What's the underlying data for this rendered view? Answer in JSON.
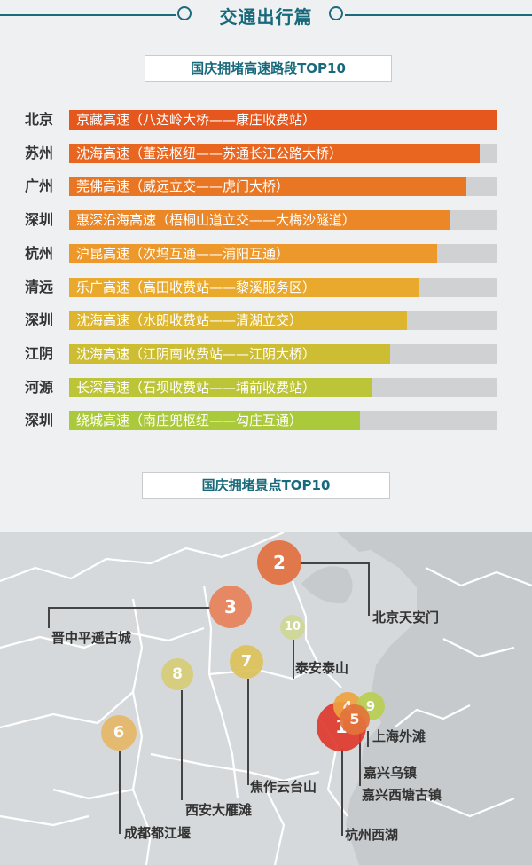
{
  "header": {
    "title": "交通出行篇"
  },
  "highway_section": {
    "title": "国庆拥堵高速路段TOP10"
  },
  "scenic_section": {
    "title": "国庆拥堵景点TOP10"
  },
  "chart_data": [
    {
      "type": "bar",
      "title": "国庆拥堵高速路段TOP10",
      "categories": [
        "北京 京藏高速（八达岭大桥——康庄收费站）",
        "苏州 沈海高速（董滨枢纽——苏通长江公路大桥）",
        "广州 莞佛高速（威远立交——虎门大桥）",
        "深圳 惠深沿海高速（梧桐山道立交——大梅沙隧道）",
        "杭州 沪昆高速（次坞互通——浦阳互通）",
        "清远 乐广高速（高田收费站——黎溪服务区）",
        "深圳 沈海高速（水朗收费站——清湖立交）",
        "江阴 沈海高速（江阴南收费站——江阴大桥）",
        "河源 长深高速（石坝收费站——埔前收费站）",
        "深圳 绕城高速（南庄兜枢纽——勾庄互通）"
      ],
      "rows": [
        {
          "city": "北京",
          "road": "京藏高速（八达岭大桥——康庄收费站）",
          "value": 100,
          "color": "#e5571c"
        },
        {
          "city": "苏州",
          "road": "沈海高速（董滨枢纽——苏通长江公路大桥）",
          "value": 96,
          "color": "#e8661f"
        },
        {
          "city": "广州",
          "road": "莞佛高速（威远立交——虎门大桥）",
          "value": 93,
          "color": "#e97622"
        },
        {
          "city": "深圳",
          "road": "惠深沿海高速（梧桐山道立交——大梅沙隧道）",
          "value": 89,
          "color": "#eb8726"
        },
        {
          "city": "杭州",
          "road": "沪昆高速（次坞互通——浦阳互通）",
          "value": 86,
          "color": "#ec982a"
        },
        {
          "city": "清远",
          "road": "乐广高速（高田收费站——黎溪服务区）",
          "value": 82,
          "color": "#e8a92c"
        },
        {
          "city": "深圳",
          "road": "沈海高速（水朗收费站——清湖立交）",
          "value": 79,
          "color": "#ddb52f"
        },
        {
          "city": "江阴",
          "road": "沈海高速（江阴南收费站——江阴大桥）",
          "value": 75,
          "color": "#cdbd33"
        },
        {
          "city": "河源",
          "road": "长深高速（石坝收费站——埔前收费站）",
          "value": 71,
          "color": "#bcc437"
        },
        {
          "city": "深圳",
          "road": "绕城高速（南庄兜枢纽——勾庄互通）",
          "value": 68,
          "color": "#aac93b"
        }
      ],
      "values": [
        100,
        96,
        93,
        89,
        86,
        82,
        79,
        75,
        71,
        68
      ],
      "ylim": [
        0,
        100
      ]
    },
    {
      "type": "scatter",
      "title": "国庆拥堵景点TOP10",
      "points": [
        {
          "rank": "1",
          "name": "杭州西湖",
          "color": "#e03a2e"
        },
        {
          "rank": "2",
          "name": "北京天安门",
          "color": "#e3703f"
        },
        {
          "rank": "3",
          "name": "晋中平遥古城",
          "color": "#e8825a"
        },
        {
          "rank": "4",
          "name": "嘉兴乌镇",
          "color": "#eea240"
        },
        {
          "rank": "5",
          "name": "上海外滩",
          "color": "#e4733b"
        },
        {
          "rank": "6",
          "name": "成都都江堰",
          "color": "#e6b868"
        },
        {
          "rank": "7",
          "name": "焦作云台山",
          "color": "#ddc35a"
        },
        {
          "rank": "8",
          "name": "西安大雁滩",
          "color": "#d7cd78"
        },
        {
          "rank": "9",
          "name": "嘉兴西塘古镇",
          "color": "#b9cf52"
        },
        {
          "rank": "10",
          "name": "泰安泰山",
          "color": "#cfd796"
        }
      ]
    }
  ]
}
